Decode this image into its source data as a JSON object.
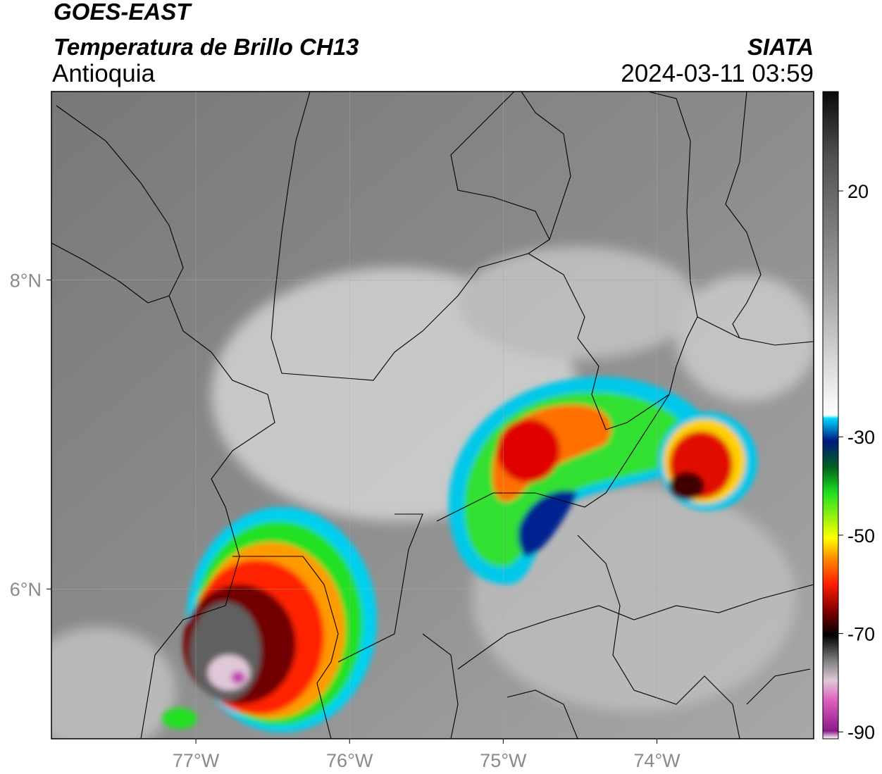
{
  "chart_data": {
    "type": "map",
    "title": "GOES-EAST",
    "subtitle": "Temperatura de Brillo CH13",
    "region": "Antioquia",
    "source": "SIATA",
    "timestamp": "2024-03-11 03:59",
    "xlim": [
      -77.94,
      -72.98
    ],
    "ylim": [
      5.03,
      9.22
    ],
    "xticks": [
      {
        "value": -77,
        "label": "77°W"
      },
      {
        "value": -76,
        "label": "76°W"
      },
      {
        "value": -75,
        "label": "75°W"
      },
      {
        "value": -74,
        "label": "74°W"
      }
    ],
    "yticks": [
      {
        "value": 6,
        "label": "6°N"
      },
      {
        "value": 8,
        "label": "8°N"
      }
    ],
    "grid": true,
    "colorbar": {
      "clim": [
        -91.4,
        40.2
      ],
      "ticks": [
        20,
        -30,
        -50,
        -70,
        -90
      ]
    }
  }
}
